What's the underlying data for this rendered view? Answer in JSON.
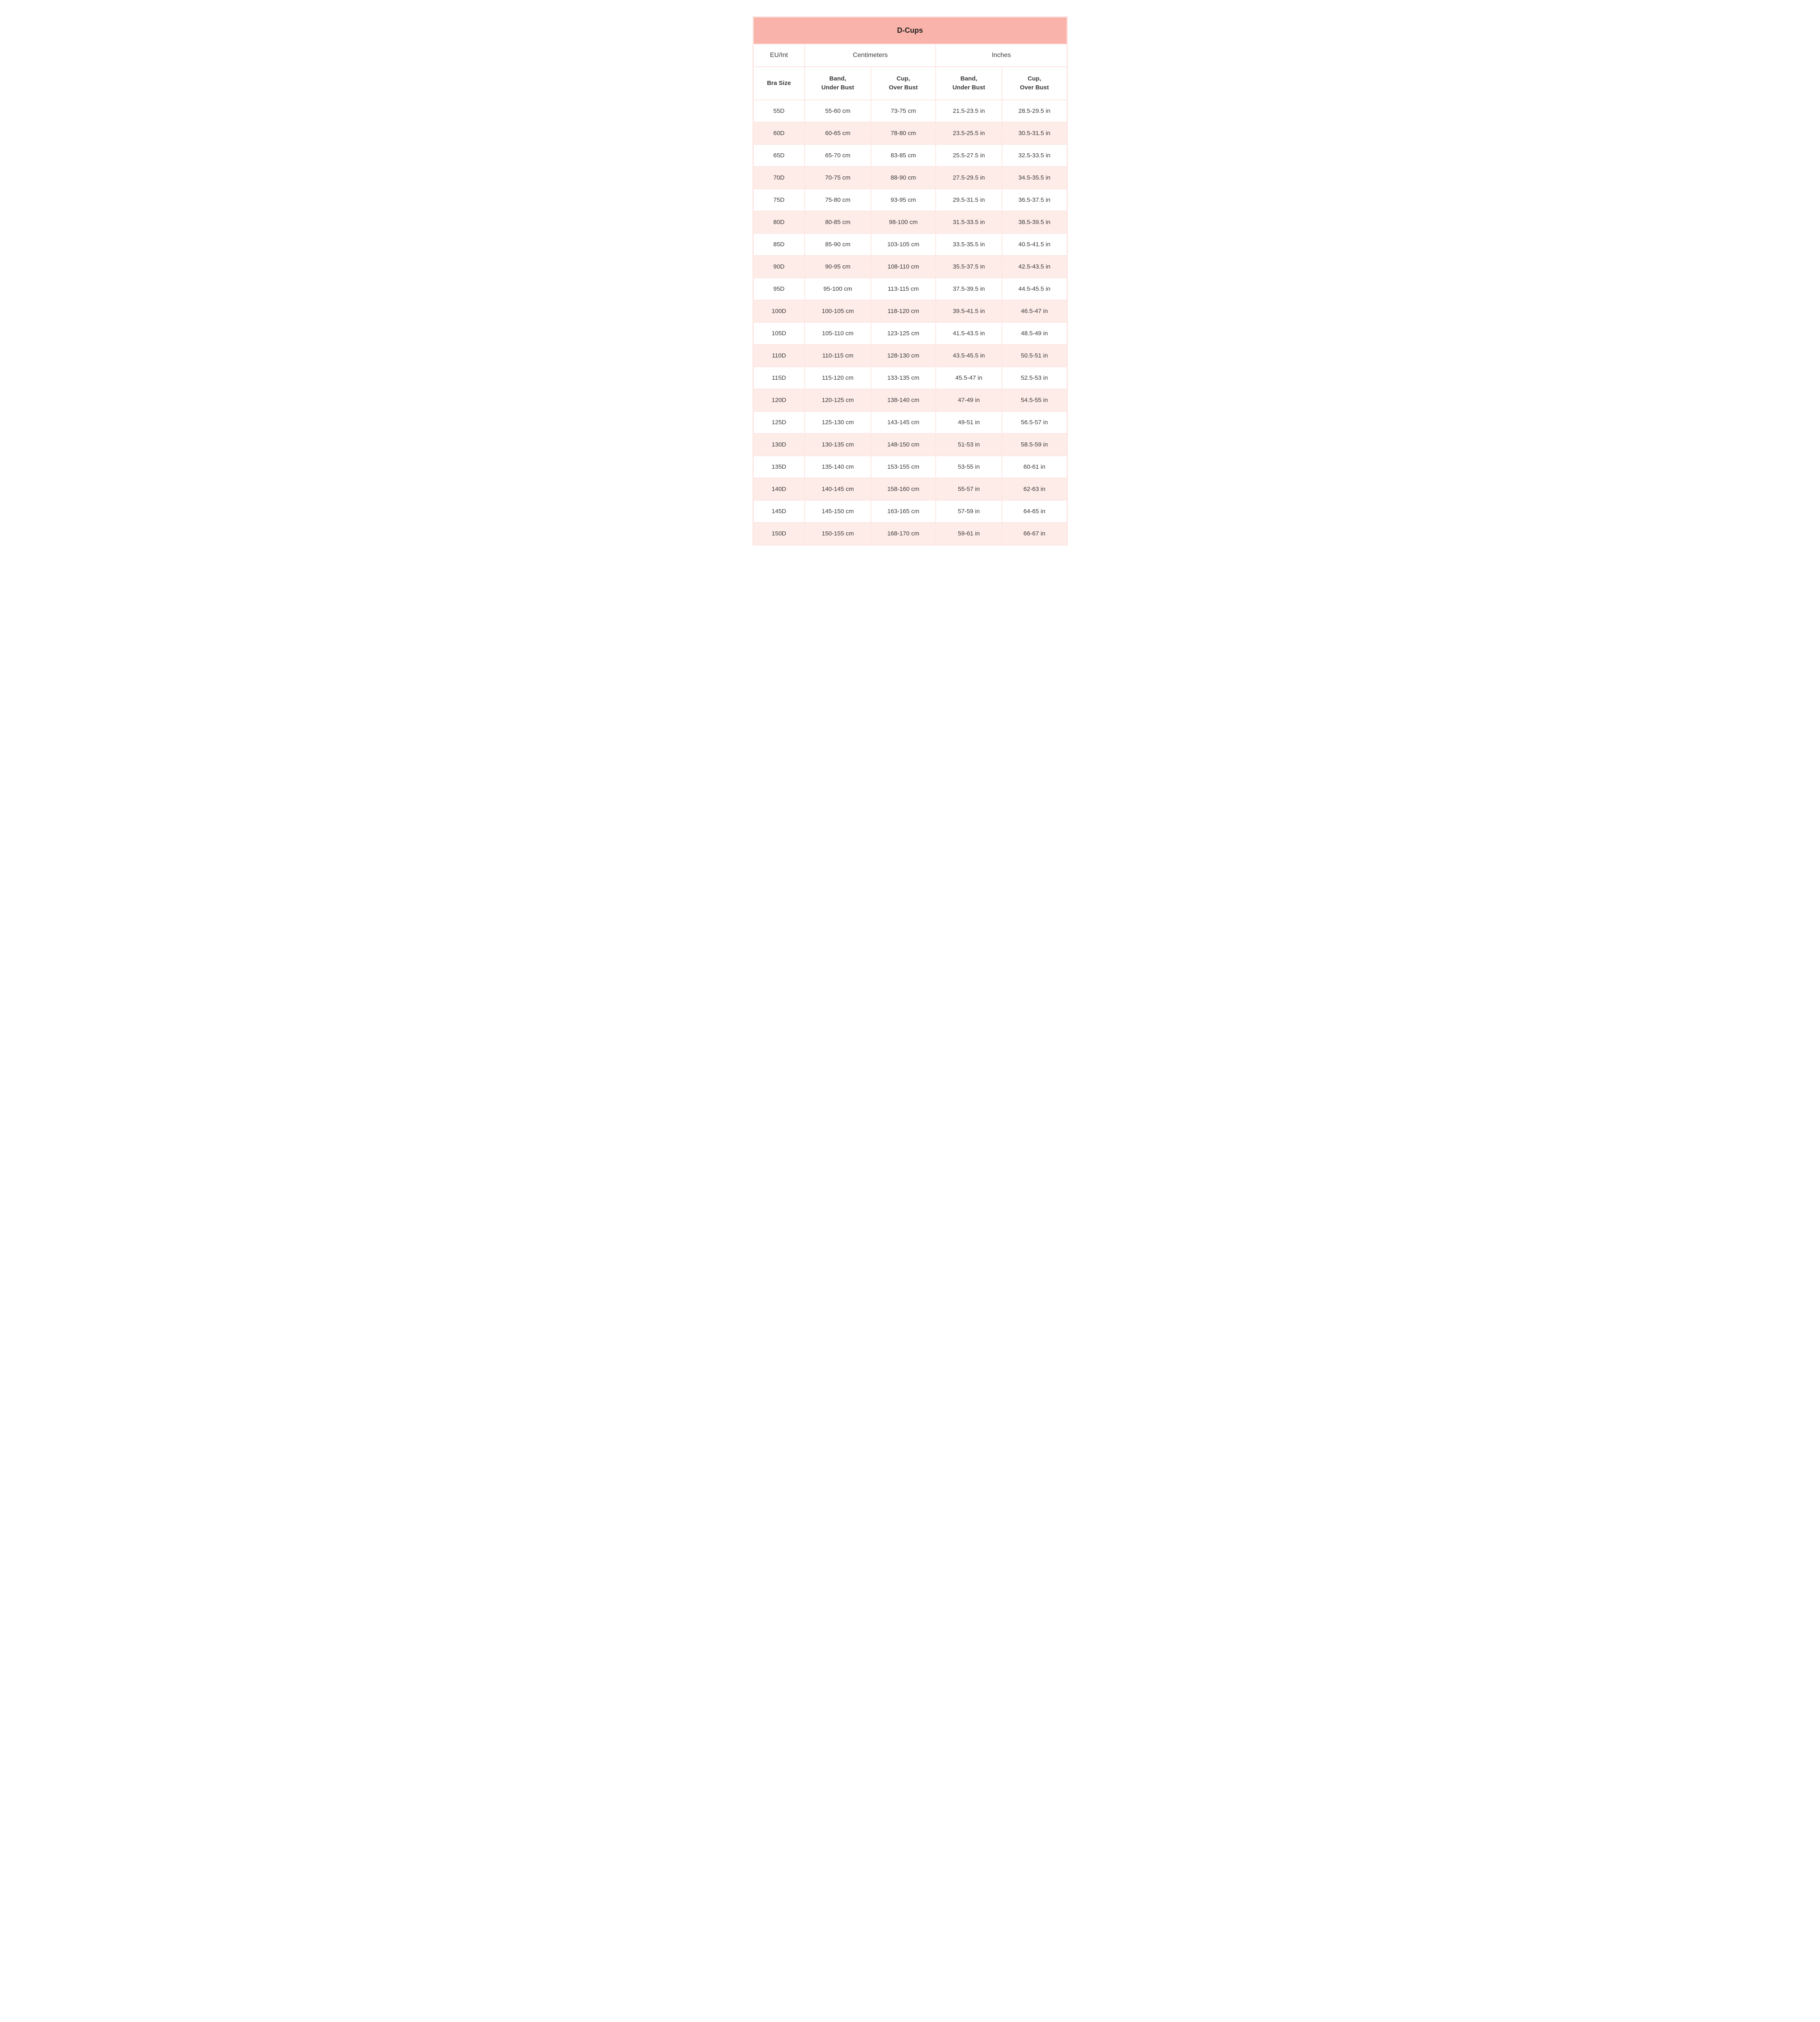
{
  "table": {
    "title": "D-Cups",
    "group_headers": [
      "EU/Int",
      "Centimeters",
      "Inches"
    ],
    "sub_headers": [
      "Bra Size",
      "Band,\nUnder Bust",
      "Cup,\nOver Bust",
      "Band,\nUnder Bust",
      "Cup,\nOver Bust"
    ],
    "columns": [
      "size",
      "band_cm",
      "cup_cm",
      "band_in",
      "cup_in"
    ],
    "rows": [
      {
        "size": "55D",
        "band_cm": "55-60 cm",
        "cup_cm": "73-75 cm",
        "band_in": "21.5-23.5 in",
        "cup_in": "28.5-29.5 in"
      },
      {
        "size": "60D",
        "band_cm": "60-65 cm",
        "cup_cm": "78-80 cm",
        "band_in": "23.5-25.5 in",
        "cup_in": "30.5-31.5 in"
      },
      {
        "size": "65D",
        "band_cm": "65-70 cm",
        "cup_cm": "83-85 cm",
        "band_in": "25.5-27.5 in",
        "cup_in": "32.5-33.5 in"
      },
      {
        "size": "70D",
        "band_cm": "70-75 cm",
        "cup_cm": "88-90 cm",
        "band_in": "27.5-29.5 in",
        "cup_in": "34.5-35.5 in"
      },
      {
        "size": "75D",
        "band_cm": "75-80 cm",
        "cup_cm": "93-95 cm",
        "band_in": "29.5-31.5 in",
        "cup_in": "36.5-37.5 in"
      },
      {
        "size": "80D",
        "band_cm": "80-85 cm",
        "cup_cm": "98-100 cm",
        "band_in": "31.5-33.5 in",
        "cup_in": "38.5-39.5 in"
      },
      {
        "size": "85D",
        "band_cm": "85-90 cm",
        "cup_cm": "103-105 cm",
        "band_in": "33.5-35.5 in",
        "cup_in": "40.5-41.5 in"
      },
      {
        "size": "90D",
        "band_cm": "90-95 cm",
        "cup_cm": "108-110 cm",
        "band_in": "35.5-37.5 in",
        "cup_in": "42.5-43.5 in"
      },
      {
        "size": "95D",
        "band_cm": "95-100 cm",
        "cup_cm": "113-115 cm",
        "band_in": "37.5-39.5 in",
        "cup_in": "44.5-45.5 in"
      },
      {
        "size": "100D",
        "band_cm": "100-105 cm",
        "cup_cm": "118-120 cm",
        "band_in": "39.5-41.5 in",
        "cup_in": "46.5-47 in"
      },
      {
        "size": "105D",
        "band_cm": "105-110 cm",
        "cup_cm": "123-125 cm",
        "band_in": "41.5-43.5 in",
        "cup_in": "48.5-49 in"
      },
      {
        "size": "110D",
        "band_cm": "110-115 cm",
        "cup_cm": "128-130 cm",
        "band_in": "43.5-45.5 in",
        "cup_in": "50.5-51 in"
      },
      {
        "size": "115D",
        "band_cm": "115-120 cm",
        "cup_cm": "133-135 cm",
        "band_in": "45.5-47 in",
        "cup_in": "52.5-53 in"
      },
      {
        "size": "120D",
        "band_cm": "120-125 cm",
        "cup_cm": "138-140 cm",
        "band_in": "47-49 in",
        "cup_in": "54.5-55 in"
      },
      {
        "size": "125D",
        "band_cm": "125-130 cm",
        "cup_cm": "143-145 cm",
        "band_in": "49-51 in",
        "cup_in": "56.5-57 in"
      },
      {
        "size": "130D",
        "band_cm": "130-135 cm",
        "cup_cm": "148-150 cm",
        "band_in": "51-53 in",
        "cup_in": "58.5-59 in"
      },
      {
        "size": "135D",
        "band_cm": "135-140 cm",
        "cup_cm": "153-155 cm",
        "band_in": "53-55 in",
        "cup_in": "60-61 in"
      },
      {
        "size": "140D",
        "band_cm": "140-145 cm",
        "cup_cm": "158-160 cm",
        "band_in": "55-57 in",
        "cup_in": "62-63 in"
      },
      {
        "size": "145D",
        "band_cm": "145-150 cm",
        "cup_cm": "163-165 cm",
        "band_in": "57-59 in",
        "cup_in": "64-65 in"
      },
      {
        "size": "150D",
        "band_cm": "150-155 cm",
        "cup_cm": "168-170 cm",
        "band_in": "59-61 in",
        "cup_in": "66-67 in"
      }
    ],
    "colors": {
      "title_bg": "#fab3aa",
      "border": "#fde7e3",
      "row_alt_bg": "#fdece8",
      "row_bg": "#ffffff",
      "text": "#3a3a3a"
    },
    "font_sizes": {
      "title": 18,
      "group": 16,
      "sub": 15,
      "body": 15
    }
  }
}
